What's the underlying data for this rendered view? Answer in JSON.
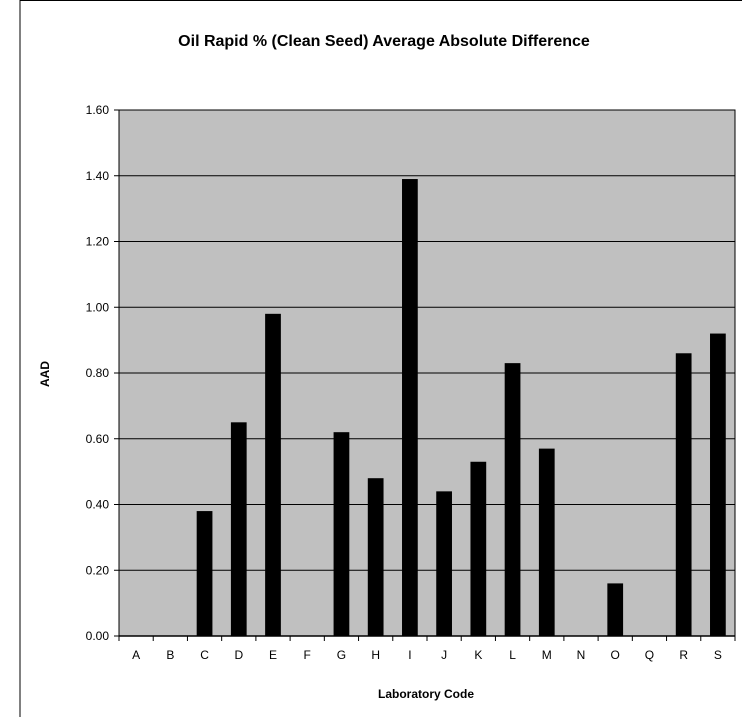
{
  "chart_data": {
    "type": "bar",
    "title": "Oil Rapid % (Clean Seed) Average Absolute Difference",
    "xlabel": "Laboratory Code",
    "ylabel": "AAD",
    "ylim": [
      0,
      1.6
    ],
    "y_ticks": [
      "0.00",
      "0.20",
      "0.40",
      "0.60",
      "0.80",
      "1.00",
      "1.20",
      "1.40",
      "1.60"
    ],
    "categories": [
      "A",
      "B",
      "C",
      "D",
      "E",
      "F",
      "G",
      "H",
      "I",
      "J",
      "K",
      "L",
      "M",
      "N",
      "O",
      "Q",
      "R",
      "S"
    ],
    "values": [
      null,
      null,
      0.38,
      0.65,
      0.98,
      null,
      0.62,
      0.48,
      1.39,
      0.44,
      0.53,
      0.83,
      0.57,
      null,
      0.16,
      null,
      0.86,
      0.92
    ],
    "grid": true,
    "colors": {
      "plot_background": "#c0c0c0",
      "bar": "#000000",
      "gridline": "#000000"
    }
  }
}
